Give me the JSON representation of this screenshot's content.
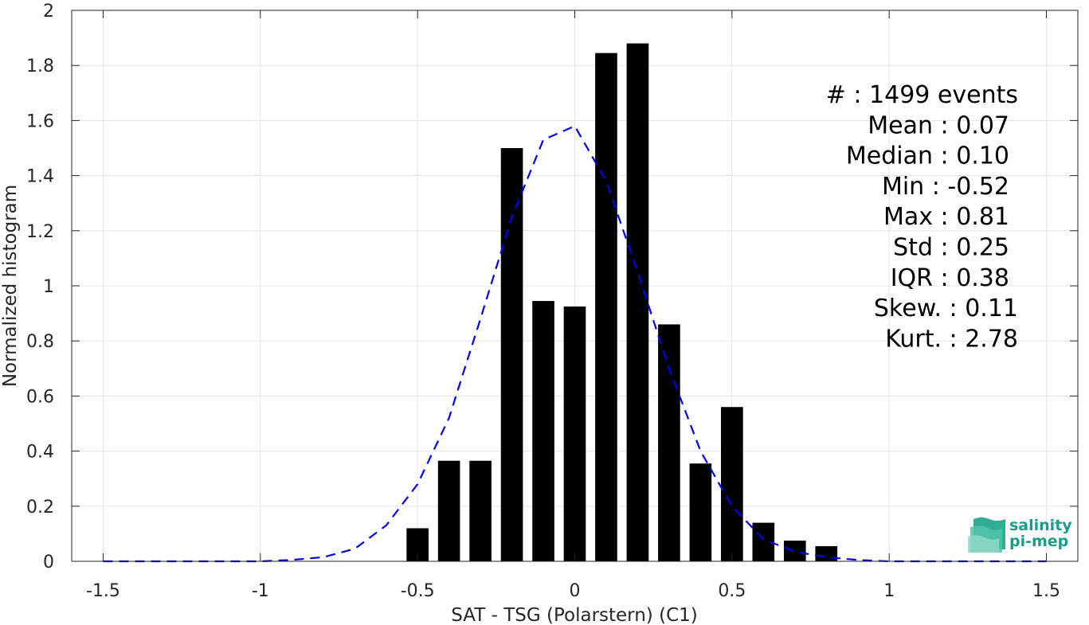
{
  "chart_data": {
    "type": "bar",
    "xlabel": "SAT - TSG (Polarstern) (C1)",
    "ylabel": "Normalized histogram",
    "xlim": [
      -1.6,
      1.6
    ],
    "ylim": [
      0,
      2
    ],
    "xticks": [
      -1.5,
      -1,
      -0.5,
      0,
      0.5,
      1,
      1.5
    ],
    "xtick_labels": [
      "-1.5",
      "-1",
      "-0.5",
      "0",
      "0.5",
      "1",
      "1.5"
    ],
    "yticks": [
      0,
      0.2,
      0.4,
      0.6,
      0.8,
      1,
      1.2,
      1.4,
      1.6,
      1.8,
      2
    ],
    "ytick_labels": [
      "0",
      "0.2",
      "0.4",
      "0.6",
      "0.8",
      "1",
      "1.2",
      "1.4",
      "1.6",
      "1.8",
      "2"
    ],
    "grid": true,
    "bar_color": "#000000",
    "bar_width": 0.07,
    "bars": {
      "x": [
        -0.5,
        -0.4,
        -0.3,
        -0.2,
        -0.1,
        0,
        0.1,
        0.2,
        0.3,
        0.4,
        0.5,
        0.6,
        0.7,
        0.8
      ],
      "y": [
        0.12,
        0.365,
        0.365,
        1.5,
        0.945,
        0.925,
        1.845,
        1.88,
        0.86,
        0.355,
        0.56,
        0.14,
        0.075,
        0.055
      ]
    },
    "fit_curve": {
      "style": "dashed",
      "color": "#0000ee",
      "x": [
        -1.5,
        -1.4,
        -1.3,
        -1.2,
        -1.1,
        -1.0,
        -0.9,
        -0.8,
        -0.7,
        -0.6,
        -0.5,
        -0.4,
        -0.3,
        -0.2,
        -0.1,
        0,
        0.1,
        0.2,
        0.3,
        0.4,
        0.5,
        0.6,
        0.7,
        0.8,
        0.9,
        1.0,
        1.1,
        1.2,
        1.3,
        1.4,
        1.5
      ],
      "y": [
        0,
        0,
        0,
        0,
        0,
        0,
        0.005,
        0.015,
        0.045,
        0.13,
        0.28,
        0.52,
        0.88,
        1.25,
        1.53,
        1.58,
        1.38,
        1.05,
        0.7,
        0.4,
        0.2,
        0.08,
        0.035,
        0.015,
        0.005,
        0,
        0,
        0,
        0,
        0,
        0
      ]
    },
    "stats": [
      {
        "label": "#  :",
        "value": "1499 events"
      },
      {
        "label": "Mean :",
        "value": "0.07"
      },
      {
        "label": "Median :",
        "value": "0.10"
      },
      {
        "label": "Min :",
        "value": "-0.52"
      },
      {
        "label": "Max :",
        "value": "0.81"
      },
      {
        "label": "Std :",
        "value": "0.25"
      },
      {
        "label": "IQR :",
        "value": "0.38"
      },
      {
        "label": "Skew. :",
        "value": "0.11"
      },
      {
        "label": "Kurt. :",
        "value": "2.78"
      }
    ]
  },
  "logo": {
    "line1": "salinity",
    "line2": "pi-mep",
    "color": "#1a9e8a"
  }
}
